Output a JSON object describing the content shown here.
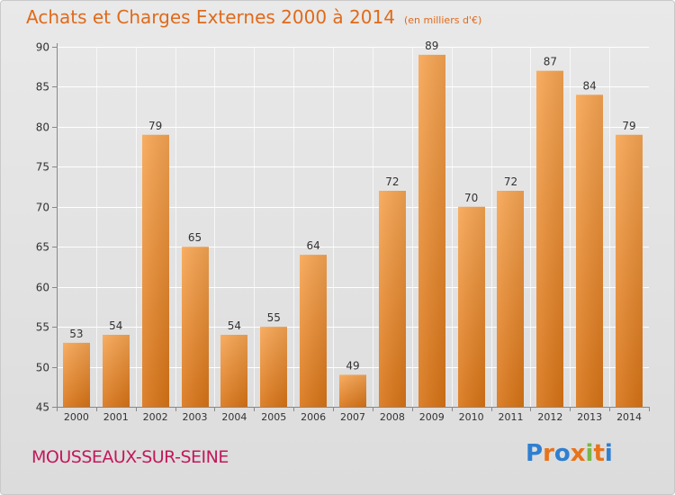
{
  "header": {
    "title": "Achats et Charges Externes 2000 à 2014",
    "unit": "(en milliers d'€)"
  },
  "footer": {
    "town": "MOUSSEAUX-SUR-SEINE",
    "logo": "Proxiti"
  },
  "colors": {
    "bar_top": "#f7a552",
    "bar_bottom": "#d97416",
    "title": "#e06a1a",
    "town": "#c2185b",
    "logo_letters": [
      "#2f7fd0",
      "#e8731a",
      "#2f7fd0",
      "#e8731a",
      "#7ab648",
      "#e8731a",
      "#2f7fd0"
    ]
  },
  "chart_data": {
    "type": "bar",
    "title": "Achats et Charges Externes 2000 à 2014",
    "subtitle": "(en milliers d'€)",
    "categories": [
      "2000",
      "2001",
      "2002",
      "2003",
      "2004",
      "2005",
      "2006",
      "2007",
      "2008",
      "2009",
      "2010",
      "2011",
      "2012",
      "2013",
      "2014"
    ],
    "values": [
      53,
      54,
      79,
      65,
      54,
      55,
      64,
      49,
      72,
      89,
      70,
      72,
      87,
      84,
      79
    ],
    "ylim": [
      45,
      90
    ],
    "yticks": [
      45,
      50,
      55,
      60,
      65,
      70,
      75,
      80,
      85,
      90
    ],
    "grid": true,
    "xlabel": "",
    "ylabel": ""
  }
}
